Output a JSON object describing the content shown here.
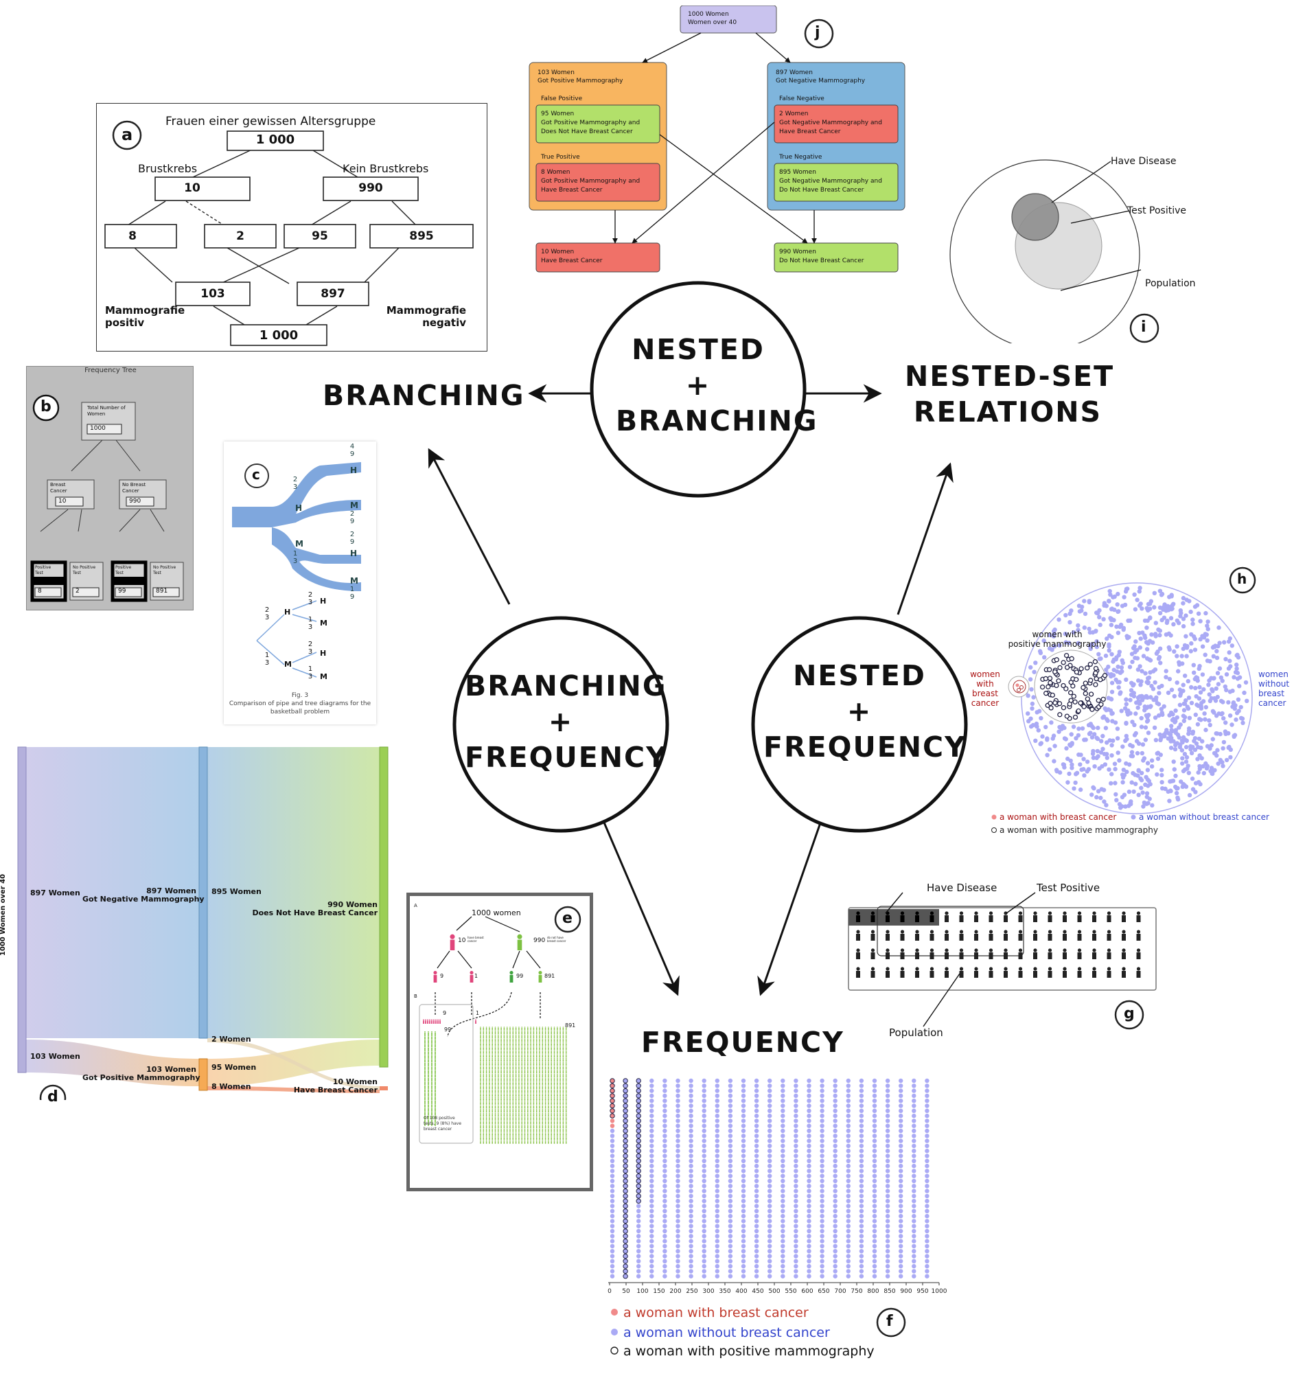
{
  "hub": {
    "center_top": [
      "NESTED",
      "+",
      "BRANCHING"
    ],
    "left_mid": [
      "BRANCHING",
      "+",
      "FREQUENCY"
    ],
    "right_mid": [
      "NESTED",
      "+",
      "FREQUENCY"
    ]
  },
  "corners": {
    "branching": "BRANCHING",
    "nested_set": [
      "NESTED-SET",
      "RELATIONS"
    ],
    "frequency": "FREQUENCY"
  },
  "panel_letters": {
    "a": "a",
    "b": "b",
    "c": "c",
    "d": "d",
    "e": "e",
    "f": "f",
    "g": "g",
    "h": "h",
    "i": "i",
    "j": "j"
  },
  "panel_a": {
    "title": "Frauen einer gewissen Altersgruppe",
    "root": "1 000",
    "left_label": "Brustkrebs",
    "right_label": "Kein Brustkrebs",
    "left": "10",
    "right": "990",
    "leaves": [
      "8",
      "2",
      "95",
      "895"
    ],
    "pos": "103",
    "neg": "897",
    "bottom": "1 000",
    "mammo_pos": [
      "Mammografie",
      "positiv"
    ],
    "mammo_neg": [
      "Mammografie",
      "negativ"
    ]
  },
  "panel_b": {
    "title": "Frequency Tree",
    "root_label": [
      "Total Number of",
      "Women"
    ],
    "root": "1000",
    "left_label": [
      "Breast",
      "Cancer"
    ],
    "right_label": [
      "No Breast",
      "Cancer"
    ],
    "left": "10",
    "right": "990",
    "leaf_labels": [
      [
        "Positive",
        "Test"
      ],
      [
        "No Positive",
        "Test"
      ],
      [
        "Positive",
        "Test"
      ],
      [
        "No Positive",
        "Test"
      ]
    ],
    "leaves": [
      "8",
      "2",
      "99",
      "891"
    ]
  },
  "panel_c": {
    "caption": [
      "Fig. 3",
      "Comparison of pipe and tree diagrams for the",
      "basketball problem"
    ],
    "H": "H",
    "M": "M",
    "fracs": {
      "two_thirds": [
        "2",
        "3"
      ],
      "one_third": [
        "1",
        "3"
      ],
      "four_ninths": [
        "4",
        "9"
      ],
      "two_ninths": [
        "2",
        "9"
      ],
      "one_ninth": [
        "1",
        "9"
      ]
    }
  },
  "panel_d": {
    "axis": "1000 Women over 40",
    "n897": "897 Women",
    "n103": "103 Women",
    "neg": [
      "897 Women",
      "Got Negative Mammography"
    ],
    "pos": [
      "103 Women",
      "Got Positive Mammography"
    ],
    "n895": "895 Women",
    "n2": "2 Women",
    "n95": "95 Women",
    "n8": "8 Women",
    "no_bc": [
      "990 Women",
      "Does Not Have Breast Cancer"
    ],
    "bc": [
      "10 Women",
      "Have Breast Cancer"
    ]
  },
  "panel_e": {
    "top": "1000 women",
    "n10": "10",
    "n10_lbl": [
      "have breast",
      "cancer"
    ],
    "n990": "990",
    "n990_lbl": [
      "do not have",
      "breast cancer"
    ],
    "n9": "9",
    "n1": "1",
    "n99": "99",
    "n891": "891",
    "A": "A",
    "B": "B",
    "note": [
      "Of 108 positive",
      "tests, 9 (8%) have",
      "breast cancer"
    ]
  },
  "panel_f": {
    "ticks": [
      "0",
      "50",
      "100",
      "150",
      "200",
      "250",
      "300",
      "350",
      "400",
      "450",
      "500",
      "550",
      "600",
      "650",
      "700",
      "750",
      "800",
      "850",
      "900",
      "950",
      "1000"
    ],
    "legend": [
      "a woman with breast cancer",
      "a woman without breast cancer",
      "a woman with positive mammography"
    ],
    "colors": {
      "cancer": "#f08a8a",
      "nocancer": "#aaaaf5",
      "ring": "#222244"
    }
  },
  "panel_g": {
    "have_disease": "Have Disease",
    "test_positive": "Test Positive",
    "population": "Population"
  },
  "panel_h": {
    "wpm": [
      "women with",
      "positive mammography"
    ],
    "wbc": [
      "women",
      "with",
      "breast",
      "cancer"
    ],
    "wobc": [
      "women",
      "without",
      "breast",
      "cancer"
    ],
    "legend": [
      "a woman with breast cancer",
      "a woman without breast cancer",
      "a woman with positive mammography"
    ]
  },
  "panel_i": {
    "have_disease": "Have Disease",
    "test_positive": "Test Positive",
    "population": "Population"
  },
  "panel_j": {
    "root": [
      "1000 Women",
      "Women over 40"
    ],
    "pos": [
      "103 Women",
      "Got Positive Mammography"
    ],
    "neg": [
      "897 Women",
      "Got Negative Mammography"
    ],
    "fp": "False Positive",
    "fp_box": [
      "95 Women",
      "Got Positive Mammography and",
      "Does Not Have Breast Cancer"
    ],
    "tp": "True Positive",
    "tp_box": [
      "8 Women",
      "Got Positive Mammography and",
      "Have Breast Cancer"
    ],
    "fn": "False Negative",
    "fn_box": [
      "2 Women",
      "Got Negative Mammography and",
      "Have Breast Cancer"
    ],
    "tn": "True Negative",
    "tn_box": [
      "895 Women",
      "Got Negative Mammography and",
      "Do Not Have Breast Cancer"
    ],
    "bc": [
      "10 Women",
      "Have Breast Cancer"
    ],
    "nobc": [
      "990 Women",
      "Do Not Have Breast Cancer"
    ]
  }
}
